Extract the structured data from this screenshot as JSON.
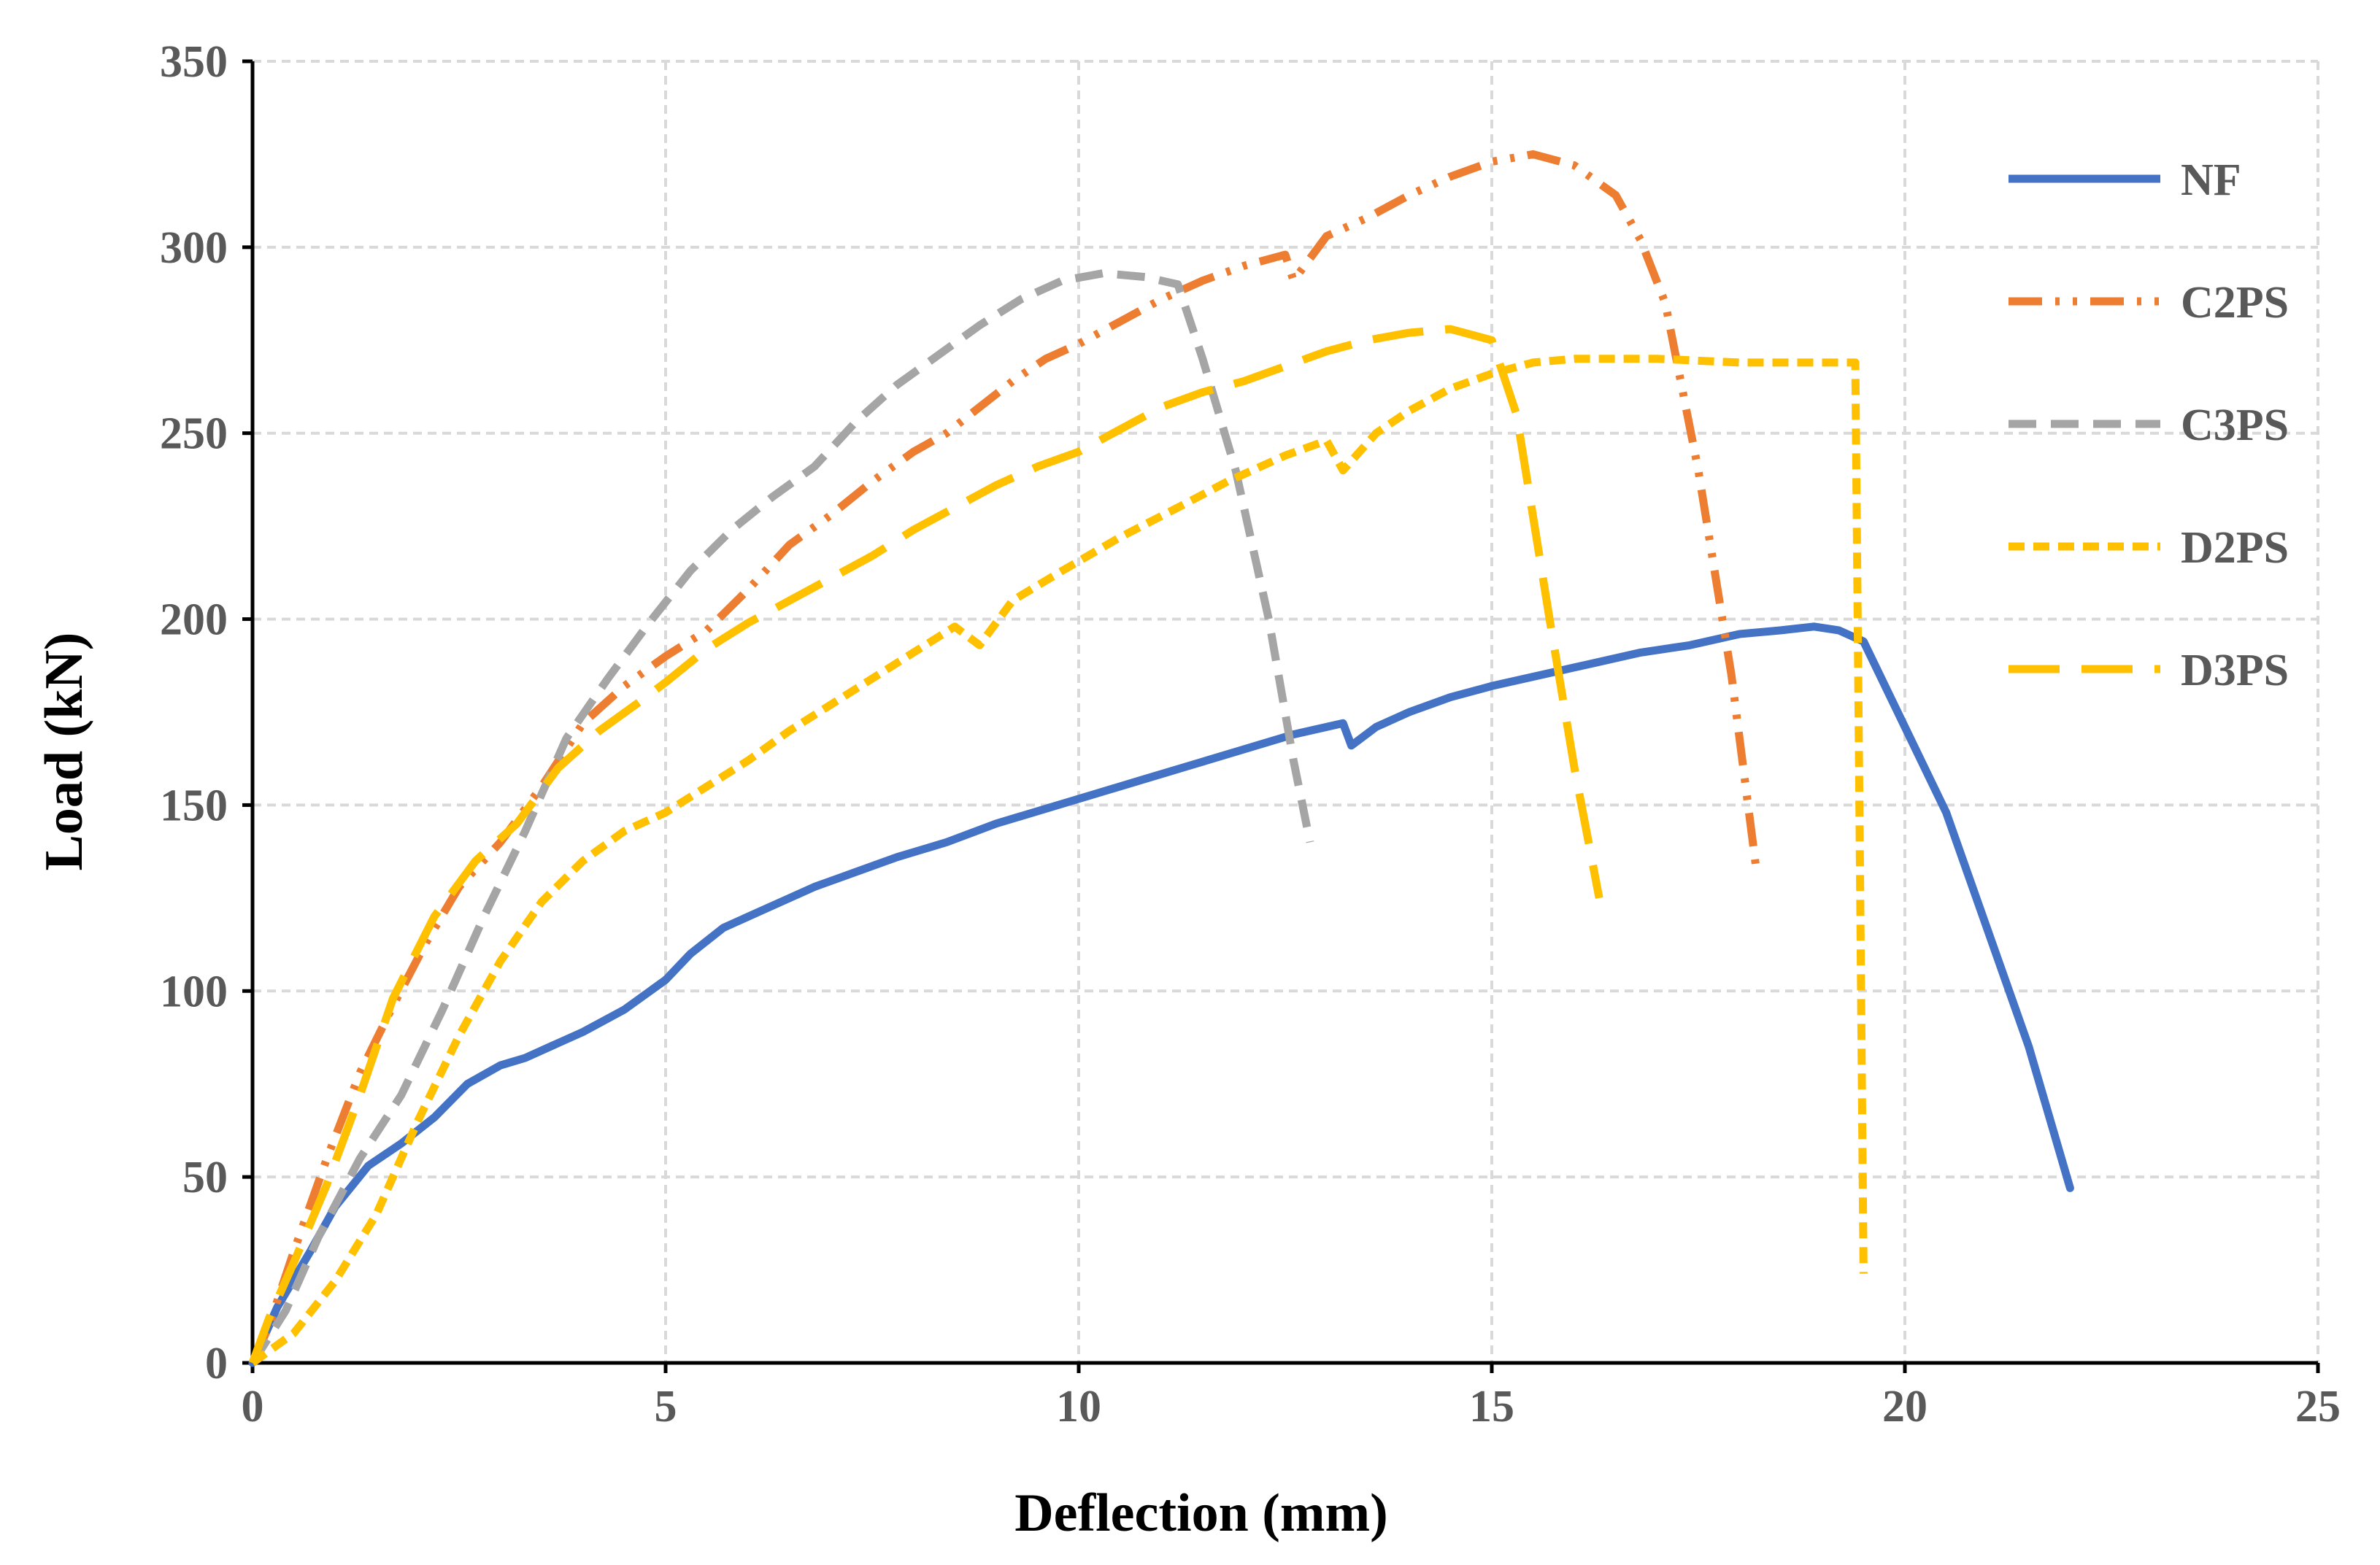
{
  "chart_data": {
    "type": "line",
    "title": "",
    "xlabel": "Deflection (mm)",
    "ylabel": "Load (kN)",
    "xlim": [
      0,
      25
    ],
    "ylim": [
      0,
      350
    ],
    "xticks": [
      0,
      5,
      10,
      15,
      20,
      25
    ],
    "yticks": [
      0,
      50,
      100,
      150,
      200,
      250,
      300,
      350
    ],
    "grid": true,
    "legend_position": "right",
    "series": [
      {
        "name": "NF",
        "color": "#4472C4",
        "style": "solid",
        "points": [
          [
            0,
            0
          ],
          [
            0.3,
            15
          ],
          [
            0.7,
            30
          ],
          [
            1.0,
            42
          ],
          [
            1.4,
            53
          ],
          [
            1.8,
            59
          ],
          [
            2.2,
            66
          ],
          [
            2.6,
            75
          ],
          [
            3.0,
            80
          ],
          [
            3.3,
            82
          ],
          [
            3.6,
            85
          ],
          [
            4.0,
            89
          ],
          [
            4.5,
            95
          ],
          [
            5.0,
            103
          ],
          [
            5.3,
            110
          ],
          [
            5.7,
            117
          ],
          [
            6.2,
            122
          ],
          [
            6.8,
            128
          ],
          [
            7.3,
            132
          ],
          [
            7.8,
            136
          ],
          [
            8.4,
            140
          ],
          [
            9.0,
            145
          ],
          [
            9.6,
            149
          ],
          [
            10.2,
            153
          ],
          [
            10.8,
            157
          ],
          [
            11.4,
            161
          ],
          [
            12.0,
            165
          ],
          [
            12.6,
            169
          ],
          [
            13.2,
            172
          ],
          [
            13.3,
            166
          ],
          [
            13.6,
            171
          ],
          [
            14.0,
            175
          ],
          [
            14.5,
            179
          ],
          [
            15.0,
            182
          ],
          [
            15.6,
            185
          ],
          [
            16.2,
            188
          ],
          [
            16.8,
            191
          ],
          [
            17.4,
            193
          ],
          [
            18.0,
            196
          ],
          [
            18.5,
            197
          ],
          [
            18.9,
            198
          ],
          [
            19.2,
            197
          ],
          [
            19.5,
            194
          ],
          [
            20.5,
            148
          ],
          [
            21.5,
            85
          ],
          [
            22.0,
            47
          ]
        ]
      },
      {
        "name": "C2PS",
        "color": "#ED7D31",
        "style": "dash-dot-dot",
        "points": [
          [
            0,
            0
          ],
          [
            0.2,
            10
          ],
          [
            0.5,
            30
          ],
          [
            0.9,
            55
          ],
          [
            1.3,
            78
          ],
          [
            1.7,
            96
          ],
          [
            2.1,
            113
          ],
          [
            2.5,
            128
          ],
          [
            3.0,
            140
          ],
          [
            3.5,
            155
          ],
          [
            4.0,
            172
          ],
          [
            4.5,
            182
          ],
          [
            5.0,
            190
          ],
          [
            5.5,
            197
          ],
          [
            6.0,
            208
          ],
          [
            6.5,
            220
          ],
          [
            7.0,
            228
          ],
          [
            7.5,
            237
          ],
          [
            8.0,
            245
          ],
          [
            8.4,
            250
          ],
          [
            8.8,
            257
          ],
          [
            9.2,
            264
          ],
          [
            9.6,
            270
          ],
          [
            10.0,
            274
          ],
          [
            10.5,
            280
          ],
          [
            11.0,
            286
          ],
          [
            11.5,
            291
          ],
          [
            12.0,
            295
          ],
          [
            12.5,
            298
          ],
          [
            12.6,
            291
          ],
          [
            13.0,
            303
          ],
          [
            13.5,
            308
          ],
          [
            14.0,
            314
          ],
          [
            14.5,
            319
          ],
          [
            15.0,
            323
          ],
          [
            15.5,
            325
          ],
          [
            16.0,
            322
          ],
          [
            16.5,
            314
          ],
          [
            16.8,
            302
          ],
          [
            17.1,
            285
          ],
          [
            17.5,
            240
          ],
          [
            17.9,
            185
          ],
          [
            18.2,
            133
          ]
        ]
      },
      {
        "name": "C3PS",
        "color": "#A5A5A5",
        "style": "dashed",
        "points": [
          [
            0,
            0
          ],
          [
            0.4,
            14
          ],
          [
            0.8,
            34
          ],
          [
            1.3,
            55
          ],
          [
            1.8,
            72
          ],
          [
            2.3,
            95
          ],
          [
            2.8,
            120
          ],
          [
            3.3,
            143
          ],
          [
            3.8,
            168
          ],
          [
            4.3,
            184
          ],
          [
            4.8,
            199
          ],
          [
            5.3,
            213
          ],
          [
            5.8,
            224
          ],
          [
            6.3,
            233
          ],
          [
            6.8,
            241
          ],
          [
            7.3,
            253
          ],
          [
            7.8,
            263
          ],
          [
            8.3,
            271
          ],
          [
            8.8,
            279
          ],
          [
            9.3,
            286
          ],
          [
            9.8,
            291
          ],
          [
            10.3,
            293
          ],
          [
            10.8,
            292
          ],
          [
            11.2,
            290
          ],
          [
            11.5,
            270
          ],
          [
            11.9,
            240
          ],
          [
            12.3,
            200
          ],
          [
            12.6,
            162
          ],
          [
            12.8,
            140
          ]
        ]
      },
      {
        "name": "D2PS",
        "color": "#FFC000",
        "style": "short-dashed",
        "points": [
          [
            0,
            0
          ],
          [
            0.5,
            8
          ],
          [
            1.0,
            22
          ],
          [
            1.5,
            40
          ],
          [
            2.0,
            65
          ],
          [
            2.5,
            88
          ],
          [
            3.0,
            108
          ],
          [
            3.5,
            124
          ],
          [
            4.0,
            135
          ],
          [
            4.5,
            143
          ],
          [
            5.0,
            148
          ],
          [
            5.5,
            155
          ],
          [
            6.0,
            162
          ],
          [
            6.5,
            170
          ],
          [
            7.0,
            177
          ],
          [
            7.5,
            184
          ],
          [
            8.0,
            191
          ],
          [
            8.5,
            198
          ],
          [
            8.8,
            193
          ],
          [
            9.2,
            205
          ],
          [
            9.8,
            213
          ],
          [
            10.5,
            222
          ],
          [
            11.2,
            230
          ],
          [
            11.8,
            237
          ],
          [
            12.5,
            244
          ],
          [
            13.0,
            248
          ],
          [
            13.2,
            240
          ],
          [
            13.6,
            250
          ],
          [
            14.0,
            256
          ],
          [
            14.5,
            262
          ],
          [
            15.0,
            266
          ],
          [
            15.5,
            269
          ],
          [
            16.0,
            270
          ],
          [
            17.0,
            270
          ],
          [
            18.0,
            269
          ],
          [
            19.4,
            269
          ],
          [
            19.45,
            150
          ],
          [
            19.5,
            24
          ]
        ]
      },
      {
        "name": "D3PS",
        "color": "#FFC000",
        "style": "long-dashed",
        "points": [
          [
            0,
            0
          ],
          [
            0.2,
            12
          ],
          [
            0.5,
            27
          ],
          [
            0.9,
            48
          ],
          [
            1.3,
            72
          ],
          [
            1.7,
            98
          ],
          [
            2.2,
            120
          ],
          [
            2.7,
            135
          ],
          [
            3.2,
            145
          ],
          [
            3.7,
            160
          ],
          [
            4.2,
            170
          ],
          [
            4.7,
            178
          ],
          [
            5.0,
            183
          ],
          [
            5.5,
            192
          ],
          [
            6.0,
            199
          ],
          [
            6.5,
            205
          ],
          [
            7.0,
            211
          ],
          [
            7.5,
            217
          ],
          [
            8.0,
            224
          ],
          [
            8.5,
            230
          ],
          [
            9.0,
            236
          ],
          [
            9.5,
            241
          ],
          [
            10.0,
            245
          ],
          [
            10.5,
            251
          ],
          [
            11.0,
            257
          ],
          [
            11.5,
            261
          ],
          [
            12.0,
            264
          ],
          [
            12.5,
            268
          ],
          [
            13.0,
            272
          ],
          [
            13.5,
            275
          ],
          [
            14.0,
            277
          ],
          [
            14.5,
            278
          ],
          [
            15.0,
            275
          ],
          [
            15.3,
            255
          ],
          [
            15.7,
            200
          ],
          [
            16.0,
            160
          ],
          [
            16.3,
            125
          ]
        ]
      }
    ]
  }
}
